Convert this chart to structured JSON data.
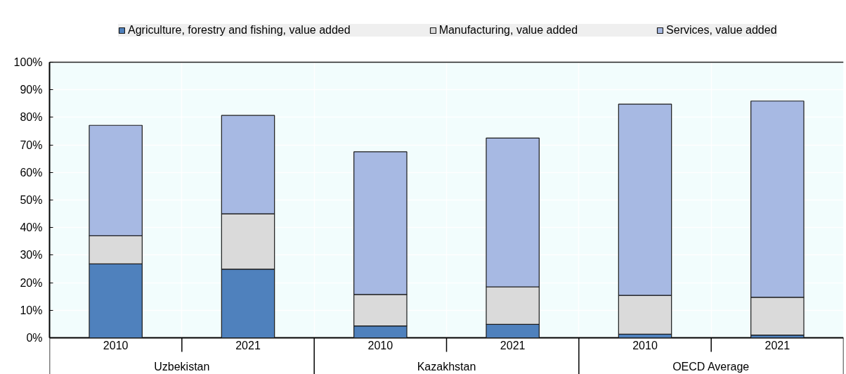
{
  "chart_data": {
    "type": "bar",
    "stacked": true,
    "categories": [
      "2010",
      "2021",
      "2010",
      "2021",
      "2010",
      "2021"
    ],
    "annotations": [
      "Uzbekistan",
      "Kazakhstan",
      "OECD Average"
    ],
    "series": [
      {
        "name": "Agriculture, forestry and fishing, value added",
        "color": "#4f81bd",
        "values": [
          26.8,
          24.9,
          4.3,
          4.9,
          1.3,
          1.0
        ]
      },
      {
        "name": "Manufacturing, value added",
        "color": "#dadada",
        "values": [
          10.2,
          20.1,
          11.4,
          13.6,
          14.1,
          13.7
        ]
      },
      {
        "name": "Services, value added",
        "color": "#a7b9e3",
        "values": [
          40.1,
          35.7,
          51.8,
          54.0,
          69.4,
          71.2
        ]
      }
    ],
    "ylim": [
      0,
      100
    ],
    "yticks": [
      {
        "value": 0,
        "label": "0%"
      },
      {
        "value": 10,
        "label": "10%"
      },
      {
        "value": 20,
        "label": "20%"
      },
      {
        "value": 30,
        "label": "30%"
      },
      {
        "value": 40,
        "label": "40%"
      },
      {
        "value": 50,
        "label": "50%"
      },
      {
        "value": 60,
        "label": "60%"
      },
      {
        "value": 70,
        "label": "70%"
      },
      {
        "value": 80,
        "label": "80%"
      },
      {
        "value": 90,
        "label": "90%"
      },
      {
        "value": 100,
        "label": "100%"
      }
    ],
    "grid": true,
    "legend": "top"
  }
}
